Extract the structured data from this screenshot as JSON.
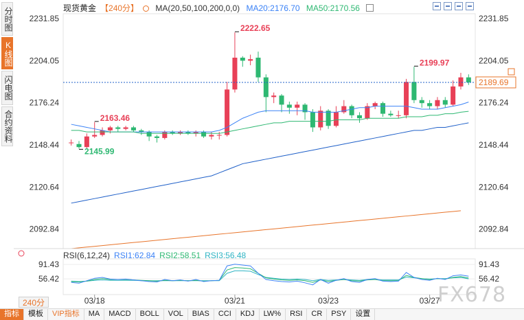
{
  "sidebar": {
    "tabs": [
      {
        "label": "分时图",
        "active": false
      },
      {
        "label": "K线图",
        "active": true
      },
      {
        "label": "闪电图",
        "active": false
      },
      {
        "label": "合约资料",
        "active": false
      }
    ]
  },
  "header": {
    "title": "现货黄金",
    "period": "【240分】",
    "ma_label": "MA(20,50,100,200,0,0)",
    "ma20": "MA20:2176.70",
    "ma50": "MA50:2170.56"
  },
  "rsi_header": {
    "label": "RSI(6,12,24)",
    "rsi1": "RSI1:62.84",
    "rsi2": "RSI2:58.51",
    "rsi3": "RSI3:56.48"
  },
  "period_button": "240分",
  "watermark": "FX678",
  "bottom_tabs": [
    {
      "label": "指标",
      "active": true
    },
    {
      "label": "模板",
      "active": false
    },
    {
      "label": "VIP指标",
      "active": false,
      "vip": true
    },
    {
      "label": "MA",
      "active": false
    },
    {
      "label": "MACD",
      "active": false
    },
    {
      "label": "BOLL",
      "active": false
    },
    {
      "label": "VOL",
      "active": false
    },
    {
      "label": "BIAS",
      "active": false
    },
    {
      "label": "CCI",
      "active": false
    },
    {
      "label": "KDJ",
      "active": false
    },
    {
      "label": "LW%",
      "active": false
    },
    {
      "label": "RSI",
      "active": false
    },
    {
      "label": "CR",
      "active": false
    },
    {
      "label": "PSY",
      "active": false
    },
    {
      "label": "设置",
      "active": false
    }
  ],
  "colors": {
    "up": "#e84057",
    "down": "#2eb872",
    "ma20": "#3b82f6",
    "ma50": "#2eb872",
    "ma100": "#1e5fc8",
    "ma200": "#e8742a",
    "accent": "#e8742a"
  },
  "chart_data": {
    "type": "candlestick",
    "price_axis": {
      "ticks": [
        "2231.85",
        "2204.05",
        "2176.24",
        "2148.44",
        "2120.64",
        "2092.84"
      ],
      "range": [
        2080,
        2235
      ]
    },
    "current_price": "2189.69",
    "annotations": {
      "high_1": "2222.65",
      "low_1": "2145.99",
      "high_2": "2163.46",
      "high_3": "2199.97"
    },
    "x_labels": [
      "03/18",
      "03/21",
      "03/23",
      "03/27"
    ],
    "rsi_axis": {
      "ticks": [
        "91.43",
        "56.42"
      ]
    },
    "candles": [
      [
        2150,
        2150,
        2152,
        2148
      ],
      [
        2149,
        2147,
        2151,
        2145.99
      ],
      [
        2147,
        2154,
        2156,
        2146
      ],
      [
        2154,
        2155,
        2163.46,
        2153
      ],
      [
        2155,
        2158,
        2160,
        2154
      ],
      [
        2158,
        2160,
        2161,
        2156
      ],
      [
        2160,
        2159,
        2161,
        2157
      ],
      [
        2159,
        2160,
        2161,
        2158
      ],
      [
        2160,
        2158,
        2161,
        2157
      ],
      [
        2158,
        2157,
        2159,
        2155
      ],
      [
        2157,
        2154,
        2158,
        2151
      ],
      [
        2154,
        2153,
        2155,
        2150
      ],
      [
        2153,
        2157,
        2158,
        2152
      ],
      [
        2157,
        2156,
        2158,
        2155
      ],
      [
        2156,
        2157,
        2158,
        2155
      ],
      [
        2157,
        2156,
        2158,
        2155
      ],
      [
        2156,
        2157,
        2158,
        2154
      ],
      [
        2157,
        2154,
        2158,
        2153
      ],
      [
        2154,
        2155,
        2157,
        2152
      ],
      [
        2155,
        2155,
        2157,
        2152
      ],
      [
        2155,
        2185,
        2190,
        2154
      ],
      [
        2185,
        2206,
        2222.65,
        2183
      ],
      [
        2206,
        2204,
        2207,
        2200
      ],
      [
        2204,
        2205,
        2208,
        2201
      ],
      [
        2206,
        2193,
        2210,
        2190
      ],
      [
        2193,
        2180,
        2195,
        2170
      ],
      [
        2180,
        2181,
        2183,
        2176
      ],
      [
        2181,
        2175,
        2182,
        2170
      ],
      [
        2175,
        2173,
        2177,
        2169
      ],
      [
        2173,
        2175,
        2177,
        2168
      ],
      [
        2175,
        2170,
        2176,
        2165
      ],
      [
        2170,
        2160,
        2172,
        2157
      ],
      [
        2160,
        2171,
        2174,
        2158
      ],
      [
        2171,
        2161,
        2172,
        2159
      ],
      [
        2161,
        2170,
        2174,
        2160
      ],
      [
        2170,
        2174,
        2178,
        2169
      ],
      [
        2174,
        2168,
        2175,
        2166
      ],
      [
        2168,
        2166,
        2170,
        2163
      ],
      [
        2166,
        2174,
        2176,
        2165
      ],
      [
        2174,
        2176,
        2177,
        2172
      ],
      [
        2176,
        2169,
        2177,
        2167
      ],
      [
        2169,
        2168,
        2171,
        2167
      ],
      [
        2168,
        2168,
        2171,
        2166
      ],
      [
        2168,
        2190,
        2192,
        2166
      ],
      [
        2190,
        2178,
        2199.97,
        2176
      ],
      [
        2178,
        2176,
        2180,
        2173
      ],
      [
        2176,
        2174,
        2178,
        2172
      ],
      [
        2174,
        2178,
        2180,
        2172
      ],
      [
        2178,
        2175,
        2180,
        2173
      ],
      [
        2175,
        2187,
        2191,
        2174
      ],
      [
        2187,
        2193,
        2196,
        2185
      ],
      [
        2193,
        2189.69,
        2195,
        2188
      ]
    ],
    "ma20": [
      2162,
      2161,
      2160,
      2159,
      2158,
      2157,
      2157,
      2157,
      2157,
      2157,
      2157,
      2157,
      2157,
      2157,
      2157,
      2157,
      2157,
      2157,
      2157,
      2158,
      2160,
      2163,
      2166,
      2168,
      2170,
      2171,
      2171,
      2171,
      2171,
      2171,
      2171,
      2170,
      2170,
      2170,
      2170,
      2171,
      2172,
      2173,
      2173,
      2174,
      2174,
      2174,
      2174,
      2174,
      2173,
      2172,
      2172,
      2172,
      2173,
      2174,
      2175,
      2176.7
    ],
    "ma50": [
      2158,
      2158,
      2157,
      2157,
      2157,
      2157,
      2157,
      2157,
      2157,
      2156,
      2156,
      2156,
      2156,
      2156,
      2156,
      2156,
      2156,
      2156,
      2156,
      2156,
      2157,
      2158,
      2159,
      2160,
      2161,
      2162,
      2163,
      2163,
      2164,
      2164,
      2164,
      2164,
      2164,
      2164,
      2165,
      2165,
      2165,
      2165,
      2166,
      2166,
      2166,
      2166,
      2166,
      2167,
      2167,
      2167,
      2168,
      2168,
      2169,
      2169,
      2170,
      2170.56
    ],
    "ma100": [
      2110,
      2111,
      2112,
      2113,
      2114,
      2115,
      2116,
      2117,
      2118,
      2119,
      2120,
      2121,
      2122,
      2123,
      2124,
      2125,
      2126,
      2127,
      2128,
      2130,
      2132,
      2134,
      2136,
      2137,
      2138,
      2139,
      2140,
      2141,
      2142,
      2143,
      2144,
      2145,
      2146,
      2147,
      2148,
      2149,
      2150,
      2151,
      2152,
      2153,
      2154,
      2155,
      2156,
      2157,
      2158,
      2158,
      2159,
      2160,
      2160,
      2161,
      2162,
      2163
    ],
    "ma200": [
      2080,
      2080.5,
      2081,
      2081.5,
      2082,
      2082.5,
      2083,
      2083.5,
      2084,
      2084.5,
      2085,
      2085.5,
      2086,
      2086.5,
      2087,
      2087.5,
      2088,
      2088.5,
      2089,
      2089.5,
      2090,
      2090.5,
      2091,
      2091.5,
      2092,
      2092.5,
      2093,
      2093.5,
      2094,
      2094.5,
      2095,
      2095.5,
      2096,
      2096.5,
      2097,
      2097.5,
      2098,
      2098.5,
      2099,
      2099.5,
      2100,
      2100.5,
      2101,
      2101.5,
      2102,
      2102.5,
      2103,
      2103.5,
      2104,
      2104.5,
      2105,
      2096
    ],
    "rsi1": [
      48,
      46,
      52,
      58,
      60,
      56,
      55,
      56,
      54,
      52,
      50,
      49,
      55,
      52,
      54,
      51,
      55,
      50,
      52,
      53,
      88,
      92,
      90,
      88,
      70,
      55,
      52,
      50,
      49,
      51,
      47,
      42,
      55,
      46,
      53,
      57,
      50,
      48,
      55,
      57,
      51,
      50,
      51,
      72,
      60,
      55,
      53,
      58,
      55,
      64,
      66,
      62.84
    ],
    "rsi2": [
      50,
      49,
      51,
      55,
      57,
      55,
      55,
      55,
      54,
      53,
      52,
      51,
      53,
      52,
      53,
      52,
      53,
      51,
      52,
      53,
      78,
      84,
      83,
      81,
      70,
      59,
      56,
      54,
      53,
      54,
      52,
      48,
      54,
      50,
      53,
      55,
      52,
      51,
      54,
      55,
      52,
      52,
      52,
      65,
      60,
      57,
      55,
      57,
      56,
      60,
      62,
      58.51
    ],
    "rsi3": [
      51,
      50,
      51,
      53,
      54,
      53,
      53,
      53,
      53,
      52,
      52,
      52,
      52,
      52,
      52,
      52,
      52,
      52,
      52,
      52,
      70,
      76,
      76,
      75,
      67,
      60,
      58,
      56,
      55,
      56,
      55,
      52,
      55,
      53,
      54,
      55,
      54,
      53,
      55,
      55,
      54,
      54,
      54,
      61,
      59,
      57,
      56,
      57,
      57,
      59,
      60,
      56.48
    ]
  }
}
